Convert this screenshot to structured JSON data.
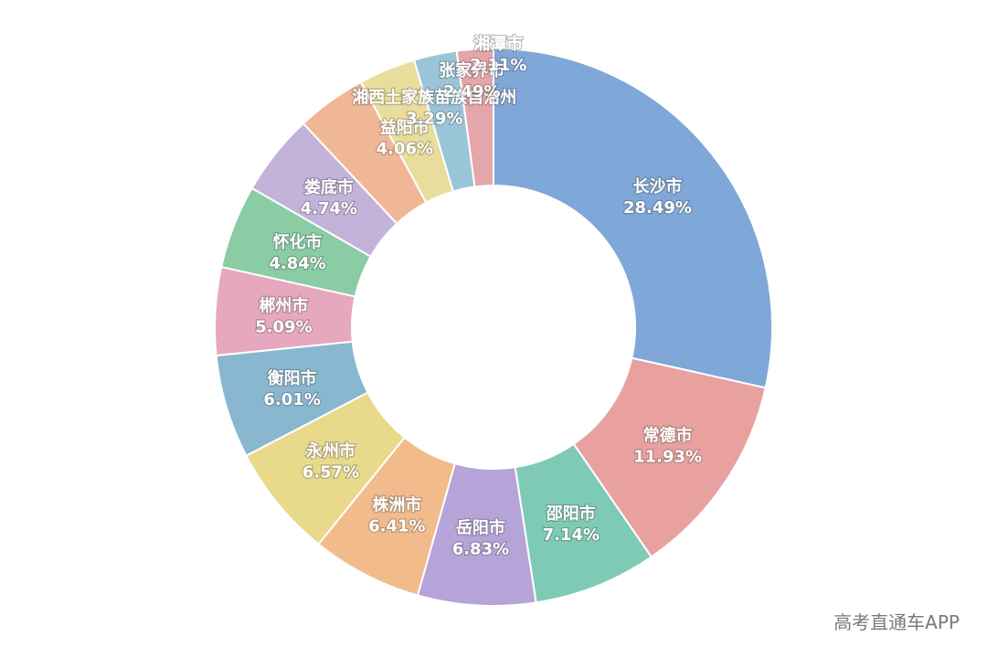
{
  "chart_data": {
    "type": "pie",
    "donut": true,
    "title": "",
    "categories": [
      "长沙市",
      "常德市",
      "邵阳市",
      "岳阳市",
      "株洲市",
      "永州市",
      "衡阳市",
      "郴州市",
      "怀化市",
      "娄底市",
      "益阳市",
      "湘西土家族苗族自治州",
      "张家界市",
      "湘潭市"
    ],
    "values": [
      28.49,
      11.93,
      7.14,
      6.83,
      6.41,
      6.57,
      6.01,
      5.09,
      4.84,
      4.74,
      4.06,
      3.29,
      2.49,
      2.11
    ],
    "labels": [
      "28.49%",
      "11.93%",
      "7.14%",
      "6.83%",
      "6.41%",
      "6.57%",
      "6.01%",
      "5.09%",
      "4.84%",
      "4.74%",
      "4.06%",
      "3.29%",
      "2.49%",
      "2.11%"
    ],
    "unit": "%",
    "colors": [
      "#7fa7d8",
      "#e8a19f",
      "#7fcab4",
      "#b6a3d7",
      "#f2bb8c",
      "#e9d98b",
      "#88b7cf",
      "#e6a8be",
      "#8acca3",
      "#c3b3da",
      "#f0b797",
      "#e8dd9c",
      "#9ac5d8",
      "#e4a6a9"
    ],
    "legend": "none"
  },
  "watermark": "高考直通车APP"
}
